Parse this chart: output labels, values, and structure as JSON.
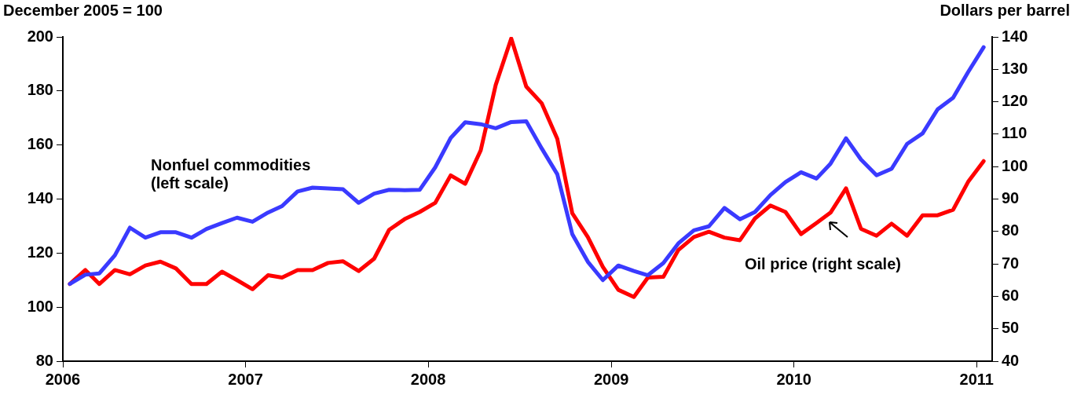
{
  "chart_data": {
    "type": "line",
    "ylabel": "December 2005 = 100",
    "y2label": "Dollars per barrel",
    "x": [
      "2006-01-15",
      "2006-02-15",
      "2006-03-15",
      "2006-04-15",
      "2006-05-15",
      "2006-06-15",
      "2006-07-15",
      "2006-08-15",
      "2006-09-15",
      "2006-10-15",
      "2006-11-15",
      "2006-12-15",
      "2007-01-15",
      "2007-02-15",
      "2007-03-15",
      "2007-04-15",
      "2007-05-15",
      "2007-06-15",
      "2007-07-15",
      "2007-08-15",
      "2007-09-15",
      "2007-10-15",
      "2007-11-15",
      "2007-12-15",
      "2008-01-15",
      "2008-02-15",
      "2008-03-15",
      "2008-04-15",
      "2008-05-15",
      "2008-06-15",
      "2008-07-15",
      "2008-08-15",
      "2008-09-15",
      "2008-10-15",
      "2008-11-15",
      "2008-12-15",
      "2009-01-15",
      "2009-02-15",
      "2009-03-15",
      "2009-04-15",
      "2009-05-15",
      "2009-06-15",
      "2009-07-15",
      "2009-08-15",
      "2009-09-15",
      "2009-10-15",
      "2009-11-15",
      "2009-12-15",
      "2010-01-15",
      "2010-02-15",
      "2010-03-15",
      "2010-04-15",
      "2010-05-15",
      "2010-06-15",
      "2010-07-15",
      "2010-08-15",
      "2010-09-15",
      "2010-10-15",
      "2010-11-15",
      "2010-12-15",
      "2011-01-15"
    ],
    "series": [
      {
        "color": "#3a3aff",
        "values": [
          108.6,
          112.0,
          112.5,
          119.2,
          129.4,
          125.7,
          127.7,
          127.7,
          125.7,
          128.9,
          131.1,
          133.1,
          131.6,
          135.0,
          137.4,
          142.8,
          144.2,
          143.9,
          143.6,
          138.6,
          142.0,
          143.4,
          143.3,
          143.4,
          151.7,
          162.6,
          168.4,
          167.7,
          166.2,
          168.5,
          168.8,
          158.7,
          149.2,
          127.0,
          116.8,
          110.0,
          115.4,
          113.4,
          111.8,
          116.3,
          123.6,
          128.4,
          129.9,
          136.7,
          132.5,
          135.2,
          141.5,
          146.3,
          149.9,
          147.6,
          153.1,
          162.5,
          154.6,
          148.8,
          151.2,
          160.4,
          164.3,
          173.2,
          177.5,
          187.0,
          196.2
        ]
      },
      {
        "color": "#ff0000",
        "axis": "y2",
        "values": [
          63.8,
          68.1,
          63.8,
          68.1,
          66.8,
          69.5,
          70.7,
          68.6,
          63.8,
          63.8,
          67.6,
          65.0,
          62.2,
          66.5,
          65.8,
          68.1,
          68.1,
          70.3,
          70.8,
          67.8,
          71.6,
          80.5,
          83.8,
          86.0,
          88.8,
          97.3,
          94.7,
          105.0,
          125.2,
          139.5,
          124.7,
          119.5,
          108.6,
          85.6,
          78.3,
          69.1,
          62.0,
          59.8,
          65.8,
          66.0,
          74.3,
          78.3,
          79.9,
          78.1,
          77.3,
          84.0,
          88.0,
          86.0,
          79.2,
          82.6,
          85.8,
          93.3,
          80.8,
          78.7,
          82.4,
          78.7,
          85.0,
          85.0,
          86.7,
          95.3,
          101.7
        ]
      }
    ],
    "xlim": [
      "2006-01-01",
      "2011-02-01"
    ],
    "xticks": [
      "2006",
      "2007",
      "2008",
      "2009",
      "2010",
      "2011"
    ],
    "ylim": [
      80,
      200
    ],
    "yticks": [
      80,
      100,
      120,
      140,
      160,
      180,
      200
    ],
    "y2lim": [
      40,
      140
    ],
    "y2ticks": [
      40,
      50,
      60,
      70,
      80,
      90,
      100,
      110,
      120,
      130,
      140
    ],
    "annotations": [
      "Nonfuel commodities\n(left scale)",
      "Oil price (right scale)"
    ]
  }
}
